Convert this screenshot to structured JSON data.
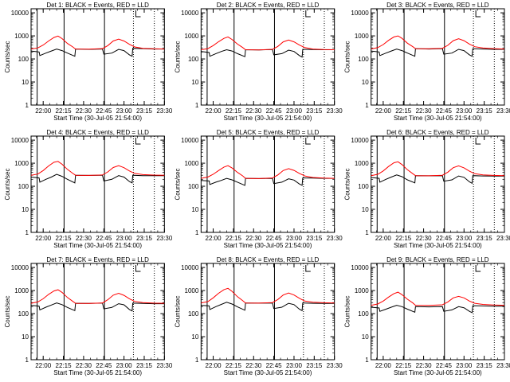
{
  "figure": {
    "xlabel": "Start Time (30-Jul-05 21:54:00)",
    "ylabel": "Counts/sec",
    "xticks": [
      "22:00",
      "22:15",
      "22:30",
      "22:45",
      "23:00",
      "23:15",
      "23:30"
    ],
    "yticks": [
      "1",
      "10",
      "100",
      "1000",
      "10000"
    ]
  },
  "colors": {
    "events": "#000000",
    "lld": "#ff0000",
    "frame": "#000000",
    "background": "#ffffff"
  },
  "chart_data": [
    {
      "type": "line",
      "title": "Det 1: BLACK = Events, RED = LLD",
      "xlabel": "Start Time (30-Jul-05 21:54:00)",
      "ylabel": "Counts/sec",
      "yscale": "log",
      "ylim": [
        1,
        15000
      ],
      "xlim_minutes": [
        -3,
        96
      ],
      "solid_markers_min": [
        1.5,
        21.5,
        51.5
      ],
      "dotted_markers_min": [
        73,
        88.5
      ],
      "series": [
        {
          "name": "Events",
          "x": [
            -3,
            3,
            3.5,
            8,
            12,
            16,
            20,
            24,
            29.5,
            30,
            40,
            50,
            51,
            57,
            62,
            66,
            70,
            72,
            72.5,
            80,
            88,
            96
          ],
          "values": [
            220,
            200,
            140,
            180,
            220,
            270,
            230,
            180,
            130,
            270,
            260,
            270,
            160,
            180,
            260,
            230,
            150,
            130,
            290,
            280,
            270,
            270
          ]
        },
        {
          "name": "LLD",
          "x": [
            -3,
            2,
            6,
            10,
            14,
            17,
            20,
            24,
            28,
            30,
            40,
            50,
            54,
            58,
            62,
            66,
            70,
            74,
            80,
            88,
            96
          ],
          "values": [
            270,
            300,
            400,
            600,
            850,
            980,
            760,
            470,
            330,
            270,
            265,
            280,
            380,
            600,
            720,
            600,
            430,
            330,
            290,
            275,
            270
          ]
        }
      ]
    },
    {
      "type": "line",
      "title": "Det 2: BLACK = Events, RED = LLD",
      "xlabel": "Start Time (30-Jul-05 21:54:00)",
      "ylabel": "Counts/sec",
      "yscale": "log",
      "ylim": [
        1,
        15000
      ],
      "xlim_minutes": [
        -3,
        96
      ],
      "solid_markers_min": [
        1.5,
        21.5,
        51.5
      ],
      "dotted_markers_min": [
        73,
        88.5
      ],
      "series": [
        {
          "name": "Events",
          "x": [
            -3,
            3,
            3.5,
            8,
            12,
            16,
            20,
            24,
            29.5,
            30,
            40,
            50,
            51,
            57,
            62,
            66,
            70,
            72,
            72.5,
            80,
            88,
            96
          ],
          "values": [
            210,
            190,
            130,
            170,
            210,
            250,
            220,
            170,
            125,
            250,
            245,
            255,
            150,
            170,
            240,
            210,
            140,
            120,
            260,
            255,
            250,
            250
          ]
        },
        {
          "name": "LLD",
          "x": [
            -3,
            2,
            6,
            10,
            14,
            17,
            20,
            24,
            28,
            30,
            40,
            50,
            54,
            58,
            62,
            66,
            70,
            74,
            80,
            88,
            96
          ],
          "values": [
            250,
            280,
            380,
            560,
            780,
            900,
            700,
            440,
            310,
            250,
            245,
            260,
            350,
            550,
            660,
            550,
            400,
            310,
            270,
            255,
            250
          ]
        }
      ]
    },
    {
      "type": "line",
      "title": "Det 3: BLACK = Events, RED = LLD",
      "xlabel": "Start Time (30-Jul-05 21:54:00)",
      "ylabel": "Counts/sec",
      "yscale": "log",
      "ylim": [
        1,
        15000
      ],
      "xlim_minutes": [
        -3,
        96
      ],
      "solid_markers_min": [
        1.5,
        21.5,
        51.5
      ],
      "dotted_markers_min": [
        73,
        88.5
      ],
      "series": [
        {
          "name": "Events",
          "x": [
            -3,
            3,
            3.5,
            8,
            12,
            16,
            20,
            24,
            29.5,
            30,
            40,
            50,
            51,
            57,
            62,
            66,
            70,
            72,
            72.5,
            80,
            88,
            96
          ],
          "values": [
            220,
            200,
            140,
            180,
            220,
            270,
            230,
            180,
            130,
            280,
            270,
            280,
            160,
            180,
            260,
            230,
            150,
            130,
            280,
            270,
            260,
            260
          ]
        },
        {
          "name": "LLD",
          "x": [
            -3,
            2,
            6,
            10,
            14,
            17,
            20,
            24,
            28,
            30,
            40,
            50,
            54,
            58,
            62,
            66,
            70,
            74,
            80,
            88,
            96
          ],
          "values": [
            270,
            310,
            420,
            640,
            900,
            1000,
            780,
            480,
            340,
            280,
            275,
            290,
            390,
            620,
            750,
            620,
            440,
            340,
            300,
            280,
            270
          ]
        }
      ]
    },
    {
      "type": "line",
      "title": "Det 4: BLACK = Events, RED = LLD",
      "xlabel": "Start Time (30-Jul-05 21:54:00)",
      "ylabel": "Counts/sec",
      "yscale": "log",
      "ylim": [
        1,
        15000
      ],
      "xlim_minutes": [
        -3,
        96
      ],
      "solid_markers_min": [
        1.5,
        21.5,
        51.5
      ],
      "dotted_markers_min": [
        73,
        88.5
      ],
      "series": [
        {
          "name": "Events",
          "x": [
            -3,
            3,
            3.5,
            8,
            12,
            16,
            20,
            24,
            29.5,
            30,
            40,
            50,
            51,
            57,
            62,
            66,
            70,
            72,
            72.5,
            80,
            88,
            96
          ],
          "values": [
            250,
            230,
            150,
            200,
            250,
            330,
            270,
            200,
            140,
            300,
            295,
            300,
            170,
            200,
            290,
            250,
            160,
            140,
            300,
            290,
            290,
            290
          ]
        },
        {
          "name": "LLD",
          "x": [
            -3,
            2,
            6,
            10,
            14,
            17,
            20,
            24,
            28,
            30,
            40,
            50,
            54,
            58,
            62,
            66,
            70,
            74,
            80,
            88,
            96
          ],
          "values": [
            300,
            340,
            480,
            760,
            1100,
            1200,
            900,
            540,
            360,
            300,
            295,
            310,
            420,
            650,
            780,
            640,
            460,
            360,
            320,
            305,
            300
          ]
        }
      ]
    },
    {
      "type": "line",
      "title": "Det 5: BLACK = Events, RED = LLD",
      "xlabel": "Start Time (30-Jul-05 21:54:00)",
      "ylabel": "Counts/sec",
      "yscale": "log",
      "ylim": [
        1,
        15000
      ],
      "xlim_minutes": [
        -3,
        96
      ],
      "solid_markers_min": [
        1.5,
        21.5,
        51.5
      ],
      "dotted_markers_min": [
        73,
        88.5
      ],
      "series": [
        {
          "name": "Events",
          "x": [
            -3,
            3,
            3.5,
            8,
            12,
            16,
            20,
            24,
            29.5,
            30,
            40,
            50,
            51,
            57,
            62,
            66,
            70,
            72,
            72.5,
            80,
            88,
            96
          ],
          "values": [
            180,
            170,
            120,
            150,
            180,
            220,
            190,
            150,
            110,
            220,
            215,
            220,
            130,
            150,
            210,
            185,
            125,
            110,
            230,
            225,
            220,
            220
          ]
        },
        {
          "name": "LLD",
          "x": [
            -3,
            2,
            6,
            10,
            14,
            17,
            20,
            24,
            28,
            30,
            40,
            50,
            54,
            58,
            62,
            66,
            70,
            74,
            80,
            88,
            96
          ],
          "values": [
            220,
            250,
            330,
            480,
            680,
            780,
            620,
            400,
            280,
            220,
            215,
            230,
            310,
            480,
            580,
            490,
            360,
            280,
            240,
            225,
            220
          ]
        }
      ]
    },
    {
      "type": "line",
      "title": "Det 6: BLACK = Events, RED = LLD",
      "xlabel": "Start Time (30-Jul-05 21:54:00)",
      "ylabel": "Counts/sec",
      "yscale": "log",
      "ylim": [
        1,
        15000
      ],
      "xlim_minutes": [
        -3,
        96
      ],
      "solid_markers_min": [
        1.5,
        21.5,
        51.5
      ],
      "dotted_markers_min": [
        73,
        88.5
      ],
      "series": [
        {
          "name": "Events",
          "x": [
            -3,
            3,
            3.5,
            8,
            12,
            16,
            20,
            24,
            29.5,
            30,
            40,
            50,
            51,
            57,
            62,
            66,
            70,
            72,
            72.5,
            80,
            88,
            96
          ],
          "values": [
            240,
            220,
            150,
            200,
            250,
            310,
            260,
            190,
            140,
            290,
            285,
            290,
            165,
            190,
            280,
            245,
            155,
            135,
            290,
            280,
            275,
            275
          ]
        },
        {
          "name": "LLD",
          "x": [
            -3,
            2,
            6,
            10,
            14,
            17,
            20,
            24,
            28,
            30,
            40,
            50,
            54,
            58,
            62,
            66,
            70,
            74,
            80,
            88,
            96
          ],
          "values": [
            290,
            330,
            460,
            720,
            1050,
            1150,
            870,
            520,
            350,
            290,
            285,
            300,
            410,
            640,
            770,
            630,
            450,
            350,
            310,
            295,
            290
          ]
        }
      ]
    },
    {
      "type": "line",
      "title": "Det 7: BLACK = Events, RED = LLD",
      "xlabel": "Start Time (30-Jul-05 21:54:00)",
      "ylabel": "Counts/sec",
      "yscale": "log",
      "ylim": [
        1,
        15000
      ],
      "xlim_minutes": [
        -3,
        96
      ],
      "solid_markers_min": [
        1.5,
        21.5,
        51.5
      ],
      "dotted_markers_min": [
        73,
        88.5
      ],
      "series": [
        {
          "name": "Events",
          "x": [
            -3,
            3,
            3.5,
            8,
            12,
            16,
            20,
            24,
            29.5,
            30,
            40,
            50,
            51,
            57,
            62,
            66,
            70,
            72,
            72.5,
            80,
            88,
            96
          ],
          "values": [
            230,
            210,
            145,
            190,
            235,
            290,
            245,
            185,
            135,
            280,
            275,
            285,
            160,
            185,
            270,
            240,
            150,
            130,
            285,
            275,
            270,
            270
          ]
        },
        {
          "name": "LLD",
          "x": [
            -3,
            2,
            6,
            10,
            14,
            17,
            20,
            24,
            28,
            30,
            40,
            50,
            54,
            58,
            62,
            66,
            70,
            74,
            80,
            88,
            96
          ],
          "values": [
            280,
            320,
            440,
            680,
            960,
            1080,
            830,
            500,
            340,
            280,
            275,
            290,
            400,
            630,
            760,
            620,
            440,
            340,
            300,
            285,
            280
          ]
        }
      ]
    },
    {
      "type": "line",
      "title": "Det 8: BLACK = Events, RED = LLD",
      "xlabel": "Start Time (30-Jul-05 21:54:00)",
      "ylabel": "Counts/sec",
      "yscale": "log",
      "ylim": [
        1,
        15000
      ],
      "xlim_minutes": [
        -3,
        96
      ],
      "solid_markers_min": [
        1.5,
        21.5,
        51.5
      ],
      "dotted_markers_min": [
        73,
        88.5
      ],
      "series": [
        {
          "name": "Events",
          "x": [
            -3,
            3,
            3.5,
            8,
            12,
            16,
            20,
            24,
            29.5,
            30,
            40,
            50,
            51,
            57,
            62,
            66,
            70,
            72,
            72.5,
            80,
            88,
            96
          ],
          "values": [
            230,
            215,
            150,
            200,
            250,
            310,
            260,
            195,
            140,
            290,
            285,
            290,
            165,
            190,
            280,
            245,
            155,
            135,
            290,
            280,
            275,
            275
          ]
        },
        {
          "name": "LLD",
          "x": [
            -3,
            2,
            6,
            10,
            14,
            17,
            20,
            24,
            28,
            30,
            40,
            50,
            54,
            58,
            62,
            66,
            70,
            74,
            80,
            88,
            96
          ],
          "values": [
            290,
            330,
            480,
            760,
            1100,
            1250,
            920,
            540,
            360,
            290,
            285,
            300,
            410,
            640,
            780,
            640,
            460,
            350,
            310,
            295,
            290
          ]
        }
      ]
    },
    {
      "type": "line",
      "title": "Det 9: BLACK = Events, RED = LLD",
      "xlabel": "Start Time (30-Jul-05 21:54:00)",
      "ylabel": "Counts/sec",
      "yscale": "log",
      "ylim": [
        1,
        15000
      ],
      "xlim_minutes": [
        -3,
        96
      ],
      "solid_markers_min": [
        1.5,
        21.5,
        51.5
      ],
      "dotted_markers_min": [
        73,
        88.5
      ],
      "series": [
        {
          "name": "Events",
          "x": [
            -3,
            3,
            3.5,
            8,
            12,
            16,
            20,
            24,
            29.5,
            30,
            40,
            50,
            51,
            57,
            62,
            66,
            70,
            72,
            72.5,
            80,
            88,
            96
          ],
          "values": [
            190,
            175,
            125,
            155,
            190,
            230,
            200,
            155,
            115,
            200,
            195,
            200,
            125,
            145,
            200,
            180,
            125,
            110,
            220,
            215,
            210,
            210
          ]
        },
        {
          "name": "LLD",
          "x": [
            -3,
            2,
            6,
            10,
            14,
            17,
            20,
            24,
            28,
            30,
            40,
            50,
            54,
            58,
            62,
            66,
            70,
            74,
            80,
            88,
            96
          ],
          "values": [
            230,
            260,
            350,
            520,
            740,
            850,
            660,
            420,
            290,
            230,
            225,
            240,
            320,
            480,
            560,
            480,
            350,
            280,
            250,
            235,
            230
          ]
        }
      ]
    }
  ]
}
